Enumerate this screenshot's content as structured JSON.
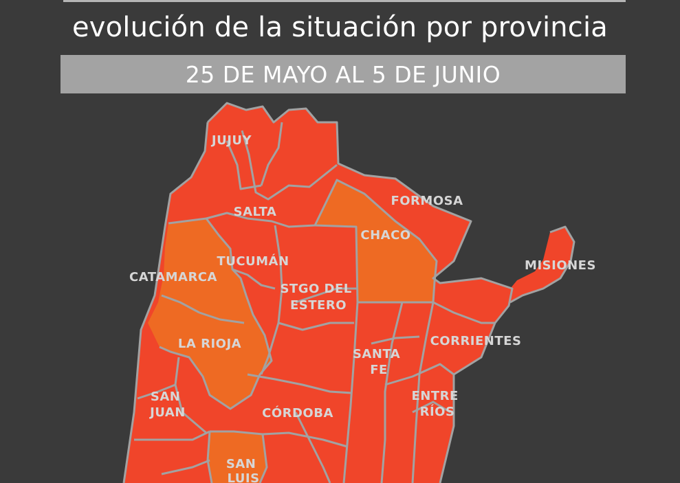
{
  "header": {
    "title": "evolución de la situación por provincia",
    "date_range": "25 DE MAYO AL 5 DE JUNIO"
  },
  "colors": {
    "background": "#3a3a3a",
    "high_risk": "#f0452a",
    "medium_risk": "#ee6a23",
    "border": "#a2a2a2",
    "label": "#d6d6d6"
  },
  "provinces": [
    {
      "id": "jujuy",
      "lines": [
        "JUJUY"
      ],
      "risk": "high_risk"
    },
    {
      "id": "salta",
      "lines": [
        "SALTA"
      ],
      "risk": "high_risk"
    },
    {
      "id": "formosa",
      "lines": [
        "FORMOSA"
      ],
      "risk": "high_risk"
    },
    {
      "id": "chaco",
      "lines": [
        "CHACO"
      ],
      "risk": "medium_risk"
    },
    {
      "id": "tucuman",
      "lines": [
        "TUCUMÁN"
      ],
      "risk": "high_risk"
    },
    {
      "id": "catamarca",
      "lines": [
        "CATAMARCA"
      ],
      "risk": "medium_risk"
    },
    {
      "id": "misiones",
      "lines": [
        "MISIONES"
      ],
      "risk": "high_risk"
    },
    {
      "id": "stgo-del-estero",
      "lines": [
        "STGO DEL",
        "ESTERO"
      ],
      "risk": "high_risk"
    },
    {
      "id": "la-rioja",
      "lines": [
        "LA RIOJA"
      ],
      "risk": "medium_risk"
    },
    {
      "id": "corrientes",
      "lines": [
        "CORRIENTES"
      ],
      "risk": "high_risk"
    },
    {
      "id": "santa-fe",
      "lines": [
        "SANTA",
        "FE"
      ],
      "risk": "high_risk"
    },
    {
      "id": "san-juan",
      "lines": [
        "SAN",
        "JUAN"
      ],
      "risk": "high_risk"
    },
    {
      "id": "entre-rios",
      "lines": [
        "ENTRE",
        "RÍOS"
      ],
      "risk": "high_risk"
    },
    {
      "id": "cordoba",
      "lines": [
        "CÓRDOBA"
      ],
      "risk": "high_risk"
    },
    {
      "id": "san-luis",
      "lines": [
        "SAN",
        "LUIS"
      ],
      "risk": "medium_risk"
    }
  ]
}
